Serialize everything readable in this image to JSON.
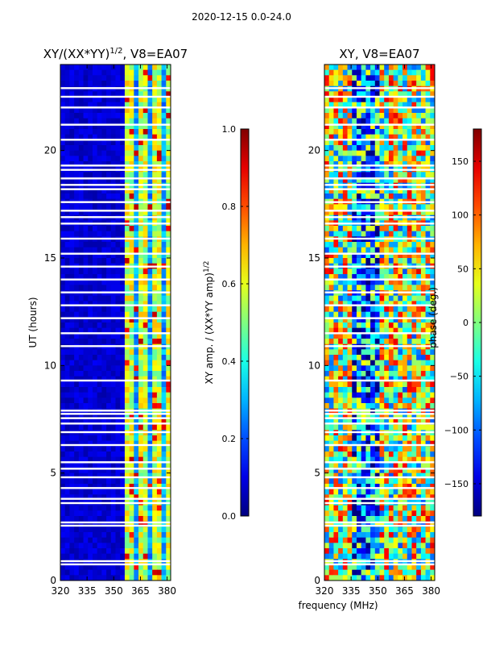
{
  "figure": {
    "suptitle": "2020-12-15 0.0-24.0",
    "shared_xlabel": "frequency (MHz)"
  },
  "chart_data": [
    {
      "type": "heatmap",
      "title": "XY/(XX*YY)^(1/2), V8=EA07",
      "title_main": "XY/(XX*YY)",
      "title_exp": "1/2",
      "title_tail": ", V8=EA07",
      "xlabel": "frequency (MHz)",
      "ylabel": "UT (hours)",
      "xlim": [
        320,
        382
      ],
      "ylim": [
        0,
        24
      ],
      "xticks": [
        320,
        335,
        350,
        365,
        380
      ],
      "yticks": [
        0,
        5,
        10,
        15,
        20
      ],
      "colorbar": {
        "label": "XY amp. / (XX*YY amp)^(1/2)",
        "label_main": "XY amp. / (XX*YY amp)",
        "label_exp": "1/2",
        "range": [
          0.0,
          1.0
        ],
        "ticks": [
          "0.0",
          "0.2",
          "0.4",
          "0.6",
          "0.8",
          "1.0"
        ]
      },
      "colormap": "jet",
      "description_levels": {
        "low_band_320_360": 0.08,
        "high_band_360_380": 0.45
      }
    },
    {
      "type": "heatmap",
      "title": "XY, V8=EA07",
      "xlabel": "frequency (MHz)",
      "ylabel": "",
      "xlim": [
        320,
        382
      ],
      "ylim": [
        0,
        24
      ],
      "xticks": [
        320,
        335,
        350,
        365,
        380
      ],
      "yticks": [
        0,
        5,
        10,
        15,
        20
      ],
      "colorbar": {
        "label": "phase (deg.)",
        "range": [
          -180,
          180
        ],
        "ticks": [
          "−150",
          "−100",
          "−50",
          "0",
          "50",
          "100",
          "150"
        ]
      },
      "colormap": "jet"
    }
  ],
  "gaps_hours": [
    0.75,
    0.9,
    2.55,
    2.7,
    3.6,
    3.8,
    4.3,
    4.8,
    5.2,
    5.5,
    6.3,
    6.9,
    7.3,
    7.55,
    7.75,
    7.9,
    9.3,
    10.9,
    11.5,
    12.2,
    12.8,
    13.4,
    14.0,
    14.6,
    15.2,
    15.9,
    16.6,
    16.9,
    17.2,
    17.6,
    18.2,
    18.4,
    18.7,
    19.1,
    19.3,
    20.5,
    21.2,
    22.0,
    22.5,
    22.9
  ]
}
